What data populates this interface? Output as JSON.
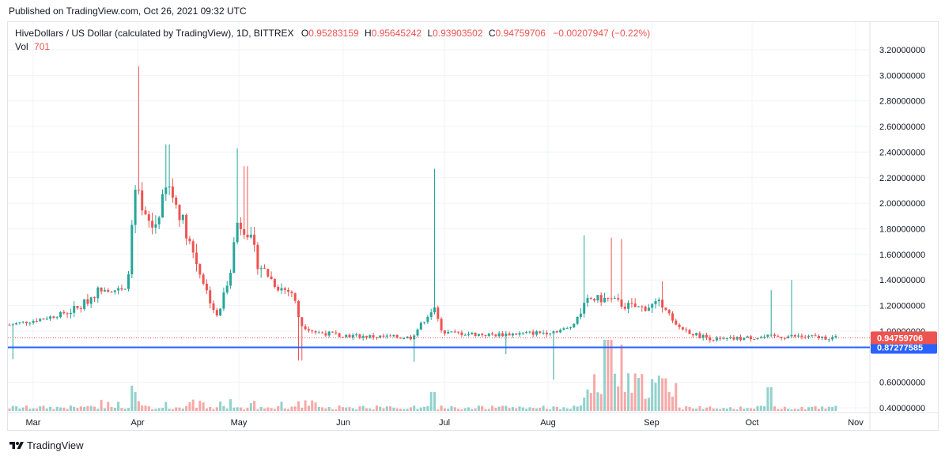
{
  "published": "Published on TradingView.com, Oct 26, 2021 09:32 UTC",
  "legend": {
    "symbol": "HiveDollars / US Dollar (calculated by TradingView), 1D, BITTREX",
    "o_label": "O",
    "o_value": "0.95283159",
    "h_label": "H",
    "h_value": "0.95645242",
    "l_label": "L",
    "l_value": "0.93903502",
    "c_label": "C",
    "c_value": "0.94759706",
    "change": "−0.00207947 (−0.22%)"
  },
  "volume": {
    "label": "Vol",
    "value": "701"
  },
  "footer": {
    "brand": "TradingView"
  },
  "colors": {
    "up": "#26a69a",
    "down": "#ef5350",
    "hline": "#2962ff",
    "last": "#ef5350"
  },
  "chart_data": {
    "type": "candlestick",
    "title": "",
    "y_ticks": [
      "3.20000000",
      "3.00000000",
      "2.80000000",
      "2.60000000",
      "2.40000000",
      "2.20000000",
      "2.00000000",
      "1.80000000",
      "1.60000000",
      "1.40000000",
      "1.20000000",
      "1.00000000",
      "0.60000000",
      "0.40000000"
    ],
    "x_ticks": [
      "Mar",
      "Apr",
      "May",
      "Jun",
      "Jul",
      "Aug",
      "Sep",
      "Oct",
      "Nov"
    ],
    "ylim": [
      0.38,
      3.3
    ],
    "last_price": 0.94759706,
    "last_price_label": "0.94759706",
    "horizontal_line": 0.87277585,
    "horizontal_line_label": "0.87277585",
    "grid": true,
    "series_approx": [
      {
        "date": "Feb 24",
        "close": 1.05
      },
      {
        "date": "Mar 10",
        "close": 1.12
      },
      {
        "date": "Mar 20",
        "close": 1.3
      },
      {
        "date": "Mar 31",
        "close": 2.15,
        "high": 3.07
      },
      {
        "date": "Apr 10",
        "close": 2.15,
        "high": 2.46
      },
      {
        "date": "Apr 25",
        "close": 1.1
      },
      {
        "date": "May 1",
        "close": 1.85,
        "high": 2.43
      },
      {
        "date": "May 5",
        "close": 1.8,
        "high": 2.29
      },
      {
        "date": "May 19",
        "close": 1.05
      },
      {
        "date": "Jun 1",
        "close": 0.98
      },
      {
        "date": "Jun 29",
        "close": 1.2,
        "high": 2.27
      },
      {
        "date": "Jul 15",
        "close": 0.98
      },
      {
        "date": "Aug 1",
        "close": 1.0
      },
      {
        "date": "Aug 14",
        "close": 1.25,
        "high": 1.75
      },
      {
        "date": "Aug 20",
        "close": 1.22,
        "high": 1.73
      },
      {
        "date": "Sep 5",
        "close": 1.18
      },
      {
        "date": "Sep 15",
        "close": 0.95
      },
      {
        "date": "Oct 12",
        "close": 0.97,
        "high": 1.4
      },
      {
        "date": "Oct 25",
        "close": 0.9476
      }
    ],
    "volume_axis": "bars along bottom, peaks around Aug 20"
  }
}
